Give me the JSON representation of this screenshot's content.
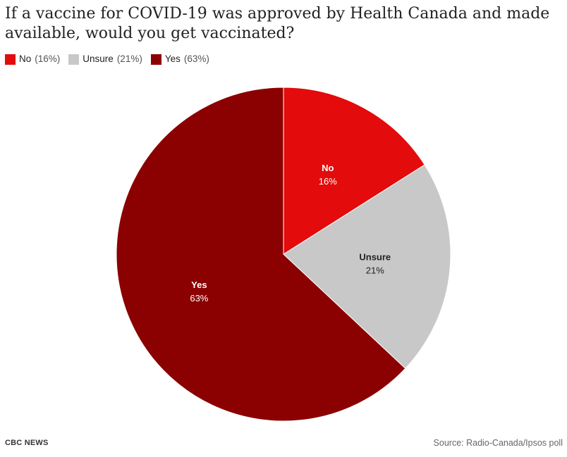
{
  "title": "If a vaccine for COVID-19 was approved by Health Canada and made available, would you get vaccinated?",
  "legend": [
    {
      "label": "No",
      "value_text": "(16%)",
      "color": "#e30b0b"
    },
    {
      "label": "Unsure",
      "value_text": "(21%)",
      "color": "#c8c8c8"
    },
    {
      "label": "Yes",
      "value_text": "(63%)",
      "color": "#8b0000"
    }
  ],
  "chart_data": {
    "type": "pie",
    "title": "If a vaccine for COVID-19 was approved by Health Canada and made available, would you get vaccinated?",
    "legend_position": "top-left",
    "slices": [
      {
        "label": "No",
        "value": 16,
        "value_label": "16%",
        "color": "#e30b0b",
        "label_color": "#ffffff"
      },
      {
        "label": "Unsure",
        "value": 21,
        "value_label": "21%",
        "color": "#c8c8c8",
        "label_color": "#222222"
      },
      {
        "label": "Yes",
        "value": 63,
        "value_label": "63%",
        "color": "#8b0000",
        "label_color": "#ffffff"
      }
    ]
  },
  "footer": {
    "brand": "CBC NEWS",
    "source": "Source: Radio-Canada/Ipsos poll"
  }
}
